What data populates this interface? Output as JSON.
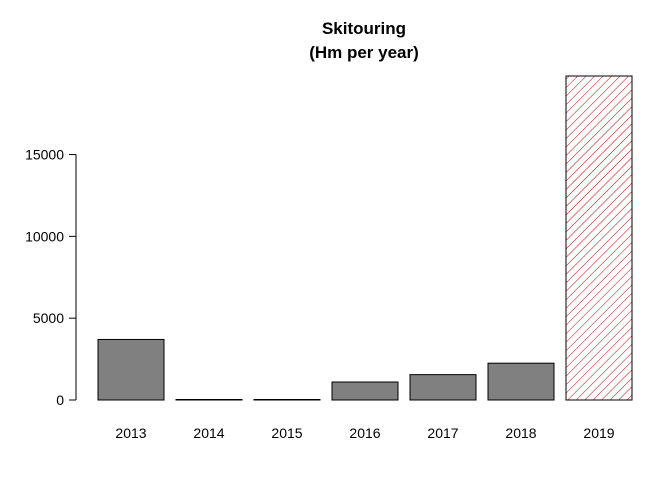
{
  "chart_data": {
    "type": "bar",
    "title": "Skitouring",
    "subtitle": "(Hm per year)",
    "xlabel": "",
    "ylabel": "",
    "categories": [
      "2013",
      "2014",
      "2015",
      "2016",
      "2017",
      "2018",
      "2019"
    ],
    "values": [
      3700,
      30,
      20,
      1100,
      1550,
      2250,
      19800
    ],
    "yticks": [
      0,
      5000,
      10000,
      15000
    ],
    "ylim": [
      0,
      20000
    ],
    "grid": false,
    "legend": "none",
    "bar_color": "#808080",
    "highlight_category": "2019",
    "highlight_color": "#cc0000"
  }
}
